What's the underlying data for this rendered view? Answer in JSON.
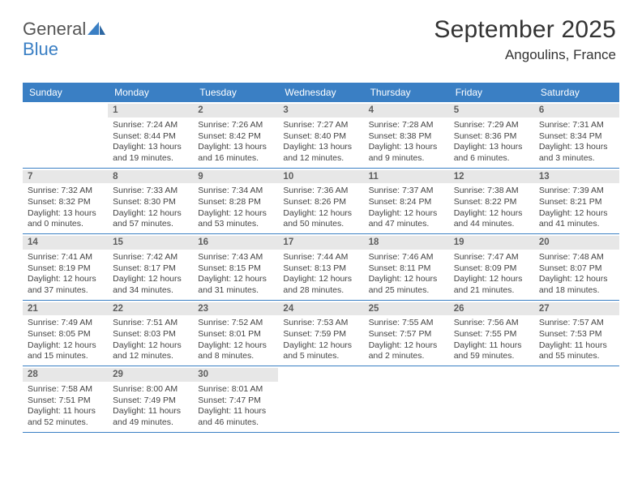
{
  "brand": {
    "line1": "General",
    "line2": "Blue",
    "icon_color": "#3a7fc4",
    "text_color_gray": "#555555"
  },
  "title": {
    "month": "September 2025",
    "location": "Angoulins, France",
    "month_fontsize": 30,
    "loc_fontsize": 17,
    "color": "#333333"
  },
  "calendar": {
    "header_bg": "#3a7fc4",
    "header_fg": "#ffffff",
    "rule_color": "#3a7fc4",
    "daynum_bg": "#e7e7e7",
    "daynum_fg": "#5e5e5e",
    "body_fg": "#444444",
    "body_fontsize": 10.5,
    "weekdays": [
      "Sunday",
      "Monday",
      "Tuesday",
      "Wednesday",
      "Thursday",
      "Friday",
      "Saturday"
    ],
    "weeks": [
      [
        {
          "blank": true
        },
        {
          "n": "1",
          "rise": "Sunrise: 7:24 AM",
          "set": "Sunset: 8:44 PM",
          "d1": "Daylight: 13 hours",
          "d2": "and 19 minutes."
        },
        {
          "n": "2",
          "rise": "Sunrise: 7:26 AM",
          "set": "Sunset: 8:42 PM",
          "d1": "Daylight: 13 hours",
          "d2": "and 16 minutes."
        },
        {
          "n": "3",
          "rise": "Sunrise: 7:27 AM",
          "set": "Sunset: 8:40 PM",
          "d1": "Daylight: 13 hours",
          "d2": "and 12 minutes."
        },
        {
          "n": "4",
          "rise": "Sunrise: 7:28 AM",
          "set": "Sunset: 8:38 PM",
          "d1": "Daylight: 13 hours",
          "d2": "and 9 minutes."
        },
        {
          "n": "5",
          "rise": "Sunrise: 7:29 AM",
          "set": "Sunset: 8:36 PM",
          "d1": "Daylight: 13 hours",
          "d2": "and 6 minutes."
        },
        {
          "n": "6",
          "rise": "Sunrise: 7:31 AM",
          "set": "Sunset: 8:34 PM",
          "d1": "Daylight: 13 hours",
          "d2": "and 3 minutes."
        }
      ],
      [
        {
          "n": "7",
          "rise": "Sunrise: 7:32 AM",
          "set": "Sunset: 8:32 PM",
          "d1": "Daylight: 13 hours",
          "d2": "and 0 minutes."
        },
        {
          "n": "8",
          "rise": "Sunrise: 7:33 AM",
          "set": "Sunset: 8:30 PM",
          "d1": "Daylight: 12 hours",
          "d2": "and 57 minutes."
        },
        {
          "n": "9",
          "rise": "Sunrise: 7:34 AM",
          "set": "Sunset: 8:28 PM",
          "d1": "Daylight: 12 hours",
          "d2": "and 53 minutes."
        },
        {
          "n": "10",
          "rise": "Sunrise: 7:36 AM",
          "set": "Sunset: 8:26 PM",
          "d1": "Daylight: 12 hours",
          "d2": "and 50 minutes."
        },
        {
          "n": "11",
          "rise": "Sunrise: 7:37 AM",
          "set": "Sunset: 8:24 PM",
          "d1": "Daylight: 12 hours",
          "d2": "and 47 minutes."
        },
        {
          "n": "12",
          "rise": "Sunrise: 7:38 AM",
          "set": "Sunset: 8:22 PM",
          "d1": "Daylight: 12 hours",
          "d2": "and 44 minutes."
        },
        {
          "n": "13",
          "rise": "Sunrise: 7:39 AM",
          "set": "Sunset: 8:21 PM",
          "d1": "Daylight: 12 hours",
          "d2": "and 41 minutes."
        }
      ],
      [
        {
          "n": "14",
          "rise": "Sunrise: 7:41 AM",
          "set": "Sunset: 8:19 PM",
          "d1": "Daylight: 12 hours",
          "d2": "and 37 minutes."
        },
        {
          "n": "15",
          "rise": "Sunrise: 7:42 AM",
          "set": "Sunset: 8:17 PM",
          "d1": "Daylight: 12 hours",
          "d2": "and 34 minutes."
        },
        {
          "n": "16",
          "rise": "Sunrise: 7:43 AM",
          "set": "Sunset: 8:15 PM",
          "d1": "Daylight: 12 hours",
          "d2": "and 31 minutes."
        },
        {
          "n": "17",
          "rise": "Sunrise: 7:44 AM",
          "set": "Sunset: 8:13 PM",
          "d1": "Daylight: 12 hours",
          "d2": "and 28 minutes."
        },
        {
          "n": "18",
          "rise": "Sunrise: 7:46 AM",
          "set": "Sunset: 8:11 PM",
          "d1": "Daylight: 12 hours",
          "d2": "and 25 minutes."
        },
        {
          "n": "19",
          "rise": "Sunrise: 7:47 AM",
          "set": "Sunset: 8:09 PM",
          "d1": "Daylight: 12 hours",
          "d2": "and 21 minutes."
        },
        {
          "n": "20",
          "rise": "Sunrise: 7:48 AM",
          "set": "Sunset: 8:07 PM",
          "d1": "Daylight: 12 hours",
          "d2": "and 18 minutes."
        }
      ],
      [
        {
          "n": "21",
          "rise": "Sunrise: 7:49 AM",
          "set": "Sunset: 8:05 PM",
          "d1": "Daylight: 12 hours",
          "d2": "and 15 minutes."
        },
        {
          "n": "22",
          "rise": "Sunrise: 7:51 AM",
          "set": "Sunset: 8:03 PM",
          "d1": "Daylight: 12 hours",
          "d2": "and 12 minutes."
        },
        {
          "n": "23",
          "rise": "Sunrise: 7:52 AM",
          "set": "Sunset: 8:01 PM",
          "d1": "Daylight: 12 hours",
          "d2": "and 8 minutes."
        },
        {
          "n": "24",
          "rise": "Sunrise: 7:53 AM",
          "set": "Sunset: 7:59 PM",
          "d1": "Daylight: 12 hours",
          "d2": "and 5 minutes."
        },
        {
          "n": "25",
          "rise": "Sunrise: 7:55 AM",
          "set": "Sunset: 7:57 PM",
          "d1": "Daylight: 12 hours",
          "d2": "and 2 minutes."
        },
        {
          "n": "26",
          "rise": "Sunrise: 7:56 AM",
          "set": "Sunset: 7:55 PM",
          "d1": "Daylight: 11 hours",
          "d2": "and 59 minutes."
        },
        {
          "n": "27",
          "rise": "Sunrise: 7:57 AM",
          "set": "Sunset: 7:53 PM",
          "d1": "Daylight: 11 hours",
          "d2": "and 55 minutes."
        }
      ],
      [
        {
          "n": "28",
          "rise": "Sunrise: 7:58 AM",
          "set": "Sunset: 7:51 PM",
          "d1": "Daylight: 11 hours",
          "d2": "and 52 minutes."
        },
        {
          "n": "29",
          "rise": "Sunrise: 8:00 AM",
          "set": "Sunset: 7:49 PM",
          "d1": "Daylight: 11 hours",
          "d2": "and 49 minutes."
        },
        {
          "n": "30",
          "rise": "Sunrise: 8:01 AM",
          "set": "Sunset: 7:47 PM",
          "d1": "Daylight: 11 hours",
          "d2": "and 46 minutes."
        },
        {
          "blank": true
        },
        {
          "blank": true
        },
        {
          "blank": true
        },
        {
          "blank": true
        }
      ]
    ]
  }
}
